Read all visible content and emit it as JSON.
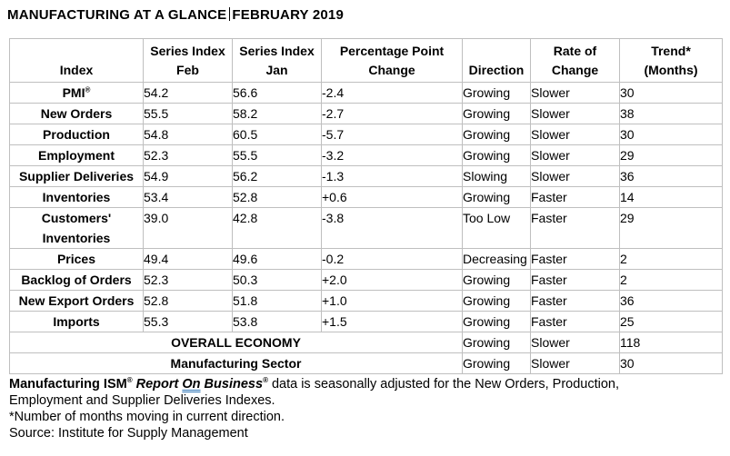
{
  "title": {
    "part1": "MANUFACTURING AT A GLANCE",
    "part2": "FEBRUARY 2019"
  },
  "colors": {
    "table_border": "#bfbfbf",
    "grammar_underline": "#2e74b5",
    "text": "#000000"
  },
  "table": {
    "headers": [
      [
        "Index"
      ],
      [
        "Series Index",
        "Feb"
      ],
      [
        "Series Index",
        "Jan"
      ],
      [
        "Percentage Point",
        "Change"
      ],
      [
        "Direction"
      ],
      [
        "Rate of",
        "Change"
      ],
      [
        "Trend*",
        "(Months)"
      ]
    ],
    "rows": [
      {
        "label_lines": [
          "PMI"
        ],
        "label_sup": "®",
        "feb": "54.2",
        "jan": "56.6",
        "change": "-2.4",
        "direction": "Growing",
        "rate": "Slower",
        "trend": "30"
      },
      {
        "label_lines": [
          "New Orders"
        ],
        "feb": "55.5",
        "jan": "58.2",
        "change": "-2.7",
        "direction": "Growing",
        "rate": "Slower",
        "trend": "38"
      },
      {
        "label_lines": [
          "Production"
        ],
        "feb": "54.8",
        "jan": "60.5",
        "change": "-5.7",
        "direction": "Growing",
        "rate": "Slower",
        "trend": "30"
      },
      {
        "label_lines": [
          "Employment"
        ],
        "feb": "52.3",
        "jan": "55.5",
        "change": "-3.2",
        "direction": "Growing",
        "rate": "Slower",
        "trend": "29"
      },
      {
        "label_lines": [
          "Supplier Deliveries"
        ],
        "feb": "54.9",
        "jan": "56.2",
        "change": "-1.3",
        "direction": "Slowing",
        "rate": "Slower",
        "trend": "36"
      },
      {
        "label_lines": [
          "Inventories"
        ],
        "feb": "53.4",
        "jan": "52.8",
        "change": "+0.6",
        "direction": "Growing",
        "rate": "Faster",
        "trend": "14"
      },
      {
        "label_lines": [
          "Customers'",
          "Inventories"
        ],
        "tall": true,
        "feb": "39.0",
        "jan": "42.8",
        "change": "-3.8",
        "direction": "Too Low",
        "rate": "Faster",
        "trend": "29"
      },
      {
        "label_lines": [
          "Prices"
        ],
        "feb": "49.4",
        "jan": "49.6",
        "change": "-0.2",
        "direction": "Decreasing",
        "rate": "Faster",
        "trend": "2"
      },
      {
        "label_lines": [
          "Backlog of Orders"
        ],
        "feb": "52.3",
        "jan": "50.3",
        "change": "+2.0",
        "direction": "Growing",
        "rate": "Faster",
        "trend": "2"
      },
      {
        "label_lines": [
          "New Export Orders"
        ],
        "feb": "52.8",
        "jan": "51.8",
        "change": "+1.0",
        "direction": "Growing",
        "rate": "Faster",
        "trend": "36"
      },
      {
        "label_lines": [
          "Imports"
        ],
        "feb": "55.3",
        "jan": "53.8",
        "change": "+1.5",
        "direction": "Growing",
        "rate": "Faster",
        "trend": "25"
      },
      {
        "merged": true,
        "label": "OVERALL ECONOMY",
        "direction": "Growing",
        "rate": "Slower",
        "trend": "118"
      },
      {
        "merged": true,
        "label": "Manufacturing Sector",
        "direction": "Growing",
        "rate": "Slower",
        "trend": "30"
      }
    ]
  },
  "footnotes": {
    "line1_bold": "Manufacturing ISM",
    "reg1": "®",
    "line1_italic1": " Report ",
    "line1_on": "On",
    "line1_italic2": " Business",
    "reg2": "®",
    "line1_rest": " data is seasonally adjusted for the New Orders, Production,",
    "line2": "Employment and Supplier Deliveries Indexes.",
    "line3": "*Number of months moving in current direction.",
    "line4": "Source: Institute for Supply Management"
  }
}
